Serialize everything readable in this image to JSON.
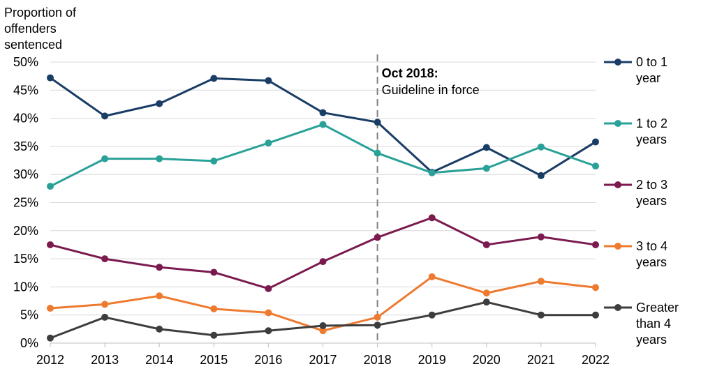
{
  "chart_data": {
    "type": "line",
    "title": "",
    "ylabel": "Proportion of offenders sentenced",
    "ylabel_lines": [
      "Proportion of",
      "offenders",
      "sentenced"
    ],
    "xlabel": "",
    "x": [
      2012,
      2013,
      2014,
      2015,
      2016,
      2017,
      2018,
      2019,
      2020,
      2021,
      2022
    ],
    "x_tick_labels": [
      "2012",
      "2013",
      "2014",
      "2015",
      "2016",
      "2017",
      "2018",
      "2019",
      "2020",
      "2021",
      "2022"
    ],
    "ylim": [
      0,
      0.5
    ],
    "y_ticks": [
      0,
      0.05,
      0.1,
      0.15,
      0.2,
      0.25,
      0.3,
      0.35,
      0.4,
      0.45,
      0.5
    ],
    "y_tick_labels": [
      "0%",
      "5%",
      "10%",
      "15%",
      "20%",
      "25%",
      "30%",
      "35%",
      "40%",
      "45%",
      "50%"
    ],
    "grid": "horizontal",
    "legend_position": "right",
    "series": [
      {
        "name": "0 to 1 year",
        "legend_lines": [
          "0 to 1",
          "year"
        ],
        "color": "#1a3d66",
        "values": [
          0.472,
          0.404,
          0.426,
          0.471,
          0.467,
          0.41,
          0.393,
          0.304,
          0.348,
          0.298,
          0.358
        ]
      },
      {
        "name": "1 to 2 years",
        "legend_lines": [
          "1 to 2",
          "years"
        ],
        "color": "#2aa198",
        "values": [
          0.279,
          0.328,
          0.328,
          0.324,
          0.356,
          0.389,
          0.338,
          0.303,
          0.311,
          0.349,
          0.315
        ]
      },
      {
        "name": "2 to 3 years",
        "legend_lines": [
          "2 to 3",
          "years"
        ],
        "color": "#7b1a4f",
        "values": [
          0.175,
          0.15,
          0.135,
          0.126,
          0.097,
          0.145,
          0.188,
          0.223,
          0.175,
          0.189,
          0.175
        ]
      },
      {
        "name": "3 to 4 years",
        "legend_lines": [
          "3 to 4",
          "years"
        ],
        "color": "#ee7a2f",
        "values": [
          0.062,
          0.069,
          0.084,
          0.061,
          0.054,
          0.022,
          0.046,
          0.118,
          0.089,
          0.11,
          0.099
        ]
      },
      {
        "name": "Greater than 4 years",
        "legend_lines": [
          "Greater",
          "than 4",
          "years"
        ],
        "color": "#3d3d3d",
        "values": [
          0.009,
          0.046,
          0.025,
          0.014,
          0.022,
          0.031,
          0.032,
          0.05,
          0.073,
          0.05,
          0.05
        ]
      }
    ],
    "annotations": [
      {
        "x": 2018,
        "style": "dashed-vertical-line",
        "title": "Oct 2018:",
        "text": "Guideline in force"
      }
    ]
  }
}
